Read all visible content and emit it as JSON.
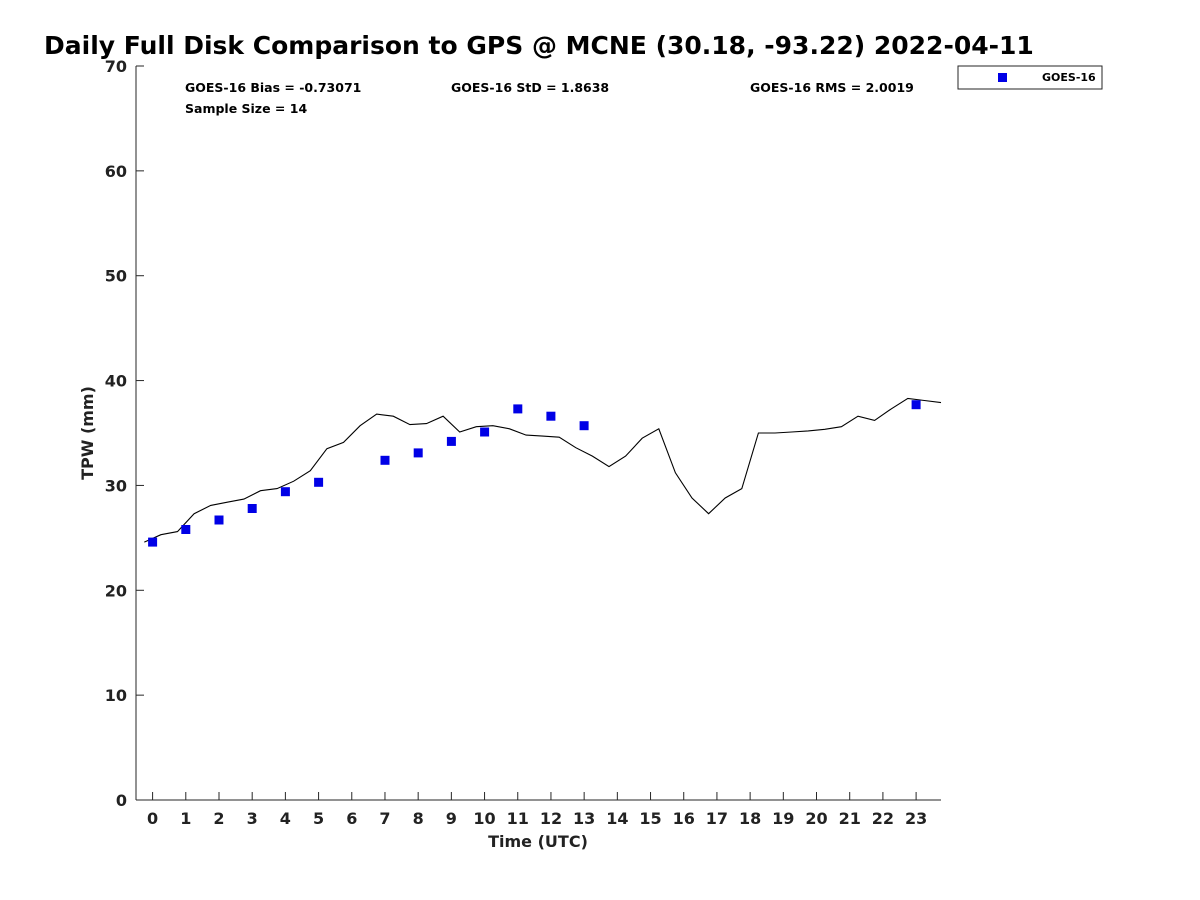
{
  "chart_data": {
    "type": "scatter",
    "title": "Daily Full Disk Comparison to GPS @ MCNE (30.18, -93.22) 2022-04-11",
    "xlabel": "Time (UTC)",
    "ylabel": "TPW (mm)",
    "xlim": [
      -0.5,
      23.75
    ],
    "ylim": [
      0,
      70
    ],
    "x_ticks": [
      "0",
      "1",
      "2",
      "3",
      "4",
      "5",
      "6",
      "7",
      "8",
      "9",
      "10",
      "11",
      "12",
      "13",
      "14",
      "15",
      "16",
      "17",
      "18",
      "19",
      "20",
      "21",
      "22",
      "23"
    ],
    "y_ticks": [
      "0",
      "10",
      "20",
      "30",
      "40",
      "50",
      "60",
      "70"
    ],
    "grid": false,
    "legend_position": "top-right",
    "stats": {
      "bias": "GOES-16 Bias = -0.73071",
      "std": "GOES-16 StD = 1.8638",
      "rms": "GOES-16 RMS = 2.0019",
      "sample": "Sample Size = 14"
    },
    "series": [
      {
        "name": "GOES-16",
        "kind": "scatter",
        "marker": "square",
        "color": "#0000e6",
        "x": [
          0,
          1,
          2,
          3,
          4,
          5,
          7,
          8,
          9,
          10,
          11,
          12,
          13,
          23
        ],
        "y": [
          24.6,
          25.8,
          26.7,
          27.8,
          29.4,
          30.3,
          32.4,
          33.1,
          34.2,
          35.1,
          37.3,
          36.6,
          35.7,
          37.7
        ]
      },
      {
        "kind": "line",
        "color": "#000000",
        "x": [
          -0.25,
          0.25,
          0.75,
          1.25,
          1.75,
          2.25,
          2.75,
          3.25,
          3.75,
          4.25,
          4.75,
          5.25,
          5.75,
          6.25,
          6.75,
          7.25,
          7.75,
          8.25,
          8.75,
          9.25,
          9.75,
          10.25,
          10.75,
          11.25,
          11.75,
          12.25,
          12.75,
          13.25,
          13.75,
          14.25,
          14.75,
          15.25,
          15.75,
          16.25,
          16.75,
          17.25,
          17.75,
          18.25,
          18.75,
          19.25,
          19.75,
          20.25,
          20.75,
          21.25,
          21.75,
          22.25,
          22.75,
          23.25,
          23.75
        ],
        "y": [
          24.6,
          25.3,
          25.6,
          27.3,
          28.1,
          28.4,
          28.7,
          29.5,
          29.7,
          30.4,
          31.4,
          33.5,
          34.1,
          35.7,
          36.8,
          36.6,
          35.8,
          35.9,
          36.6,
          35.1,
          35.6,
          35.7,
          35.4,
          34.8,
          34.7,
          34.6,
          33.6,
          32.8,
          31.8,
          32.8,
          34.5,
          35.4,
          31.2,
          28.8,
          27.3,
          28.8,
          29.7,
          35.0,
          35.0,
          35.1,
          35.2,
          35.35,
          35.6,
          36.6,
          36.2,
          37.3,
          38.3,
          38.1,
          37.9
        ]
      }
    ]
  }
}
